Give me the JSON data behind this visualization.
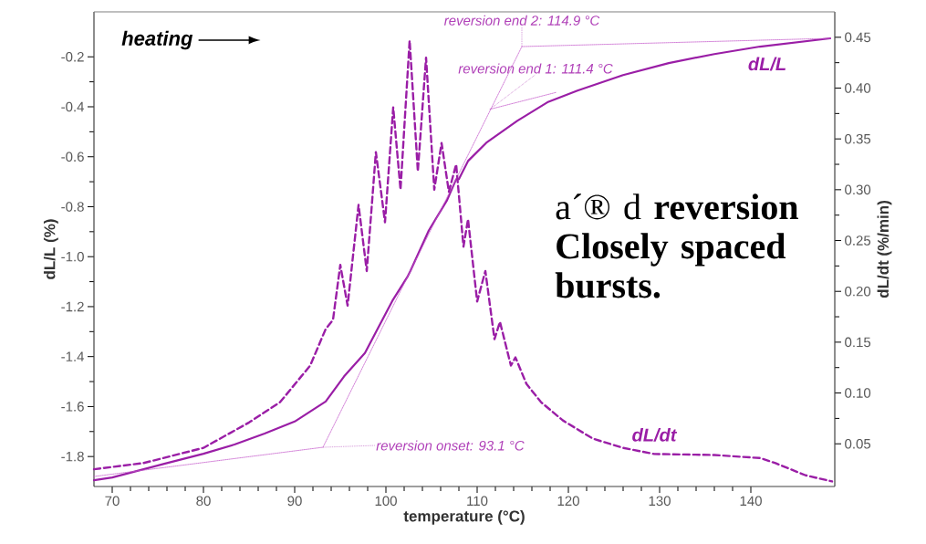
{
  "chart_data": {
    "type": "line",
    "xlabel": "temperature (°C)",
    "ylabel": "dL/L (%)",
    "y2label": "dL/dt (%/min)",
    "xlim": [
      68,
      149.2
    ],
    "xticks": [
      70,
      80,
      90,
      100,
      110,
      120,
      130,
      140
    ],
    "ylim": [
      -1.92,
      -0.02
    ],
    "yticks": [
      -1.8,
      -1.6,
      -1.4,
      -1.2,
      {
        "value": -1.0,
        "label": "-1.0"
      },
      -0.8,
      -0.6,
      -0.4,
      -0.2
    ],
    "y2lim": [
      0.008,
      0.475
    ],
    "y2ticks": [
      0.05,
      {
        "value": 0.1,
        "label": "0.10"
      },
      0.15,
      {
        "value": 0.2,
        "label": "0.20"
      },
      0.25,
      {
        "value": 0.3,
        "label": "0.30"
      },
      0.35,
      {
        "value": 0.4,
        "label": "0.40"
      },
      0.45
    ],
    "grid": false,
    "series": [
      {
        "name": "dL/L",
        "color": "#9a1ea6",
        "axis": "y",
        "line_style": "solid",
        "x": [
          68,
          70,
          75.7,
          80,
          83.4,
          86.7,
          90,
          93.4,
          95.4,
          97.7,
          99,
          100.7,
          102.4,
          102.7,
          104.7,
          106.7,
          107.7,
          108,
          109,
          111,
          114.4,
          117.7,
          121,
          126,
          131,
          136,
          141,
          148.7
        ],
        "values": [
          -1.895,
          -1.884,
          -1.829,
          -1.789,
          -1.752,
          -1.708,
          -1.66,
          -1.58,
          -1.48,
          -1.386,
          -1.295,
          -1.177,
          -1.078,
          -1.056,
          -0.895,
          -0.774,
          -0.69,
          -0.69,
          -0.617,
          -0.544,
          -0.456,
          -0.382,
          -0.335,
          -0.273,
          -0.225,
          -0.189,
          -0.159,
          -0.126
        ]
      },
      {
        "name": "dL/dt",
        "color": "#9a1ea6",
        "axis": "y2",
        "line_style": "dashed",
        "x": [
          68,
          73.4,
          80,
          85,
          88.4,
          91.7,
          93.4,
          94.2,
          95.0,
          95.8,
          97.0,
          97.9,
          98.9,
          99.9,
          100.8,
          101.6,
          102.6,
          103.5,
          104.4,
          105.3,
          106.1,
          106.9,
          107.7,
          108.5,
          109,
          110,
          110.9,
          111.9,
          112.5,
          113.7,
          114.2,
          115.4,
          117,
          119.4,
          122.7,
          126,
          129.4,
          136,
          141,
          142.7,
          146,
          148.9
        ],
        "values": [
          0.025,
          0.031,
          0.046,
          0.071,
          0.091,
          0.127,
          0.163,
          0.172,
          0.226,
          0.186,
          0.285,
          0.22,
          0.337,
          0.268,
          0.381,
          0.3,
          0.447,
          0.318,
          0.43,
          0.3,
          0.346,
          0.298,
          0.325,
          0.244,
          0.271,
          0.19,
          0.22,
          0.153,
          0.17,
          0.127,
          0.135,
          0.109,
          0.091,
          0.073,
          0.055,
          0.046,
          0.04,
          0.039,
          0.036,
          0.031,
          0.019,
          0.013
        ]
      },
      {
        "color": "#c660cd",
        "axis": "y",
        "line_style": "dotted",
        "x": [
          68,
          93.1
        ],
        "values": [
          -1.88,
          -1.763
        ]
      },
      {
        "color": "#c660cd",
        "axis": "y",
        "line_style": "dotted",
        "x": [
          93.1,
          114.9
        ],
        "values": [
          -1.763,
          -0.159
        ]
      },
      {
        "color": "#c660cd",
        "axis": "y",
        "line_style": "dotted",
        "x": [
          111.4,
          118.7
        ],
        "values": [
          -0.41,
          -0.342
        ]
      },
      {
        "color": "#c660cd",
        "axis": "y",
        "line_style": "dotted",
        "x": [
          114.9,
          148.7
        ],
        "values": [
          -0.159,
          -0.126
        ]
      }
    ],
    "annotations": [
      "heating",
      {
        "text": "reversion end 2: 114.9 °C",
        "x": 114.9,
        "y": -0.159
      },
      {
        "text": "reversion end 1: 111.4 °C",
        "x": 111.4,
        "y": -0.41
      },
      {
        "text": "reversion onset: 93.1 °C",
        "x": 93.1,
        "y": -1.763
      },
      "a´® d **reversion Closely spaced bursts.**"
    ]
  }
}
